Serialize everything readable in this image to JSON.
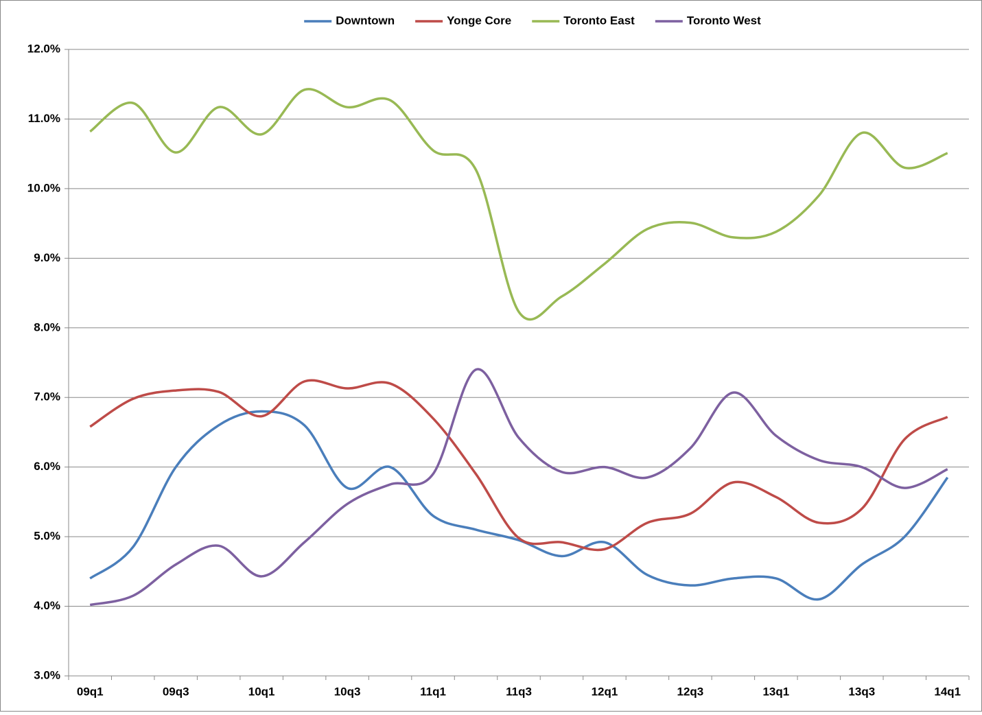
{
  "chart_data": {
    "type": "line",
    "categories": [
      "09q1",
      null,
      "09q3",
      null,
      "10q1",
      null,
      "10q3",
      null,
      "11q1",
      null,
      "11q3",
      null,
      "12q1",
      null,
      "12q3",
      null,
      "13q1",
      null,
      "13q3",
      null,
      "14q1"
    ],
    "series": [
      {
        "name": "Downtown",
        "color": "#4a7ebb",
        "values": [
          4.4,
          4.85,
          6.0,
          6.6,
          6.8,
          6.6,
          5.7,
          6.0,
          5.3,
          5.1,
          4.95,
          4.72,
          4.92,
          4.45,
          4.3,
          4.4,
          4.4,
          4.1,
          4.6,
          5.0,
          5.85
        ]
      },
      {
        "name": "Yonge Core",
        "color": "#be4b48",
        "values": [
          6.58,
          6.98,
          7.1,
          7.08,
          6.73,
          7.23,
          7.13,
          7.2,
          6.7,
          5.9,
          4.98,
          4.92,
          4.82,
          5.2,
          5.33,
          5.78,
          5.57,
          5.2,
          5.4,
          6.4,
          6.72
        ]
      },
      {
        "name": "Toronto East",
        "color": "#98b954",
        "values": [
          10.82,
          11.23,
          10.52,
          11.17,
          10.78,
          11.42,
          11.17,
          11.27,
          10.55,
          10.27,
          8.23,
          8.45,
          8.92,
          9.42,
          9.51,
          9.3,
          9.38,
          9.9,
          10.8,
          10.3,
          10.51
        ]
      },
      {
        "name": "Toronto West",
        "color": "#7d60a0",
        "values": [
          4.02,
          4.15,
          4.6,
          4.87,
          4.43,
          4.92,
          5.47,
          5.75,
          5.9,
          7.4,
          6.42,
          5.93,
          6.0,
          5.85,
          6.27,
          7.07,
          6.45,
          6.1,
          6.0,
          5.7,
          5.97
        ]
      }
    ],
    "ylim": [
      3,
      12
    ],
    "yticks": [
      {
        "value": 3,
        "label": "3.0%"
      },
      {
        "value": 4,
        "label": "4.0%"
      },
      {
        "value": 5,
        "label": "5.0%"
      },
      {
        "value": 6,
        "label": "6.0%"
      },
      {
        "value": 7,
        "label": "7.0%"
      },
      {
        "value": 8,
        "label": "8.0%"
      },
      {
        "value": 9,
        "label": "9.0%"
      },
      {
        "value": 10,
        "label": "10.0%"
      },
      {
        "value": 11,
        "label": "11.0%"
      },
      {
        "value": 12,
        "label": "12.0%"
      }
    ],
    "grid": true,
    "smooth": true,
    "legend": "top"
  }
}
